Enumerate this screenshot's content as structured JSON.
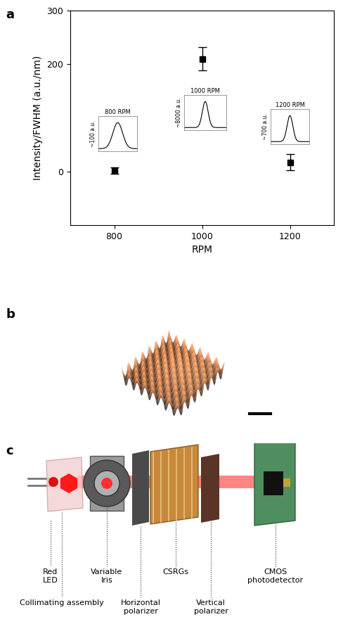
{
  "chart_data": {
    "type": "scatter",
    "xlabel": "RPM",
    "ylabel": "Intensity/FWHM (a.u./nm)",
    "x": [
      800,
      1000,
      1200
    ],
    "values": [
      2,
      210,
      17
    ],
    "error": [
      6,
      22,
      15
    ],
    "xlim": [
      700,
      1300
    ],
    "xticks": [
      800,
      1000,
      1200
    ],
    "ylim": [
      -100,
      300
    ],
    "yticks": [
      0,
      200,
      300
    ],
    "color": "#000000",
    "marker": "square",
    "annotations": [
      {
        "title": "800 RPM",
        "label": "~100 a.u."
      },
      {
        "title": "1000 RPM",
        "label": "~8000 a.u."
      },
      {
        "title": "1200 RPM",
        "label": "~700 a.u."
      }
    ]
  },
  "panel_labels": [
    "a",
    "b",
    "c"
  ],
  "diagram": {
    "labels": [
      "Red\nLED",
      "Collimating assembly",
      "Variable\nIris",
      "Horizontal\npolarizer",
      "CSRGs",
      "Vertical\npolarizer",
      "CMOS\nphotodetector"
    ]
  }
}
